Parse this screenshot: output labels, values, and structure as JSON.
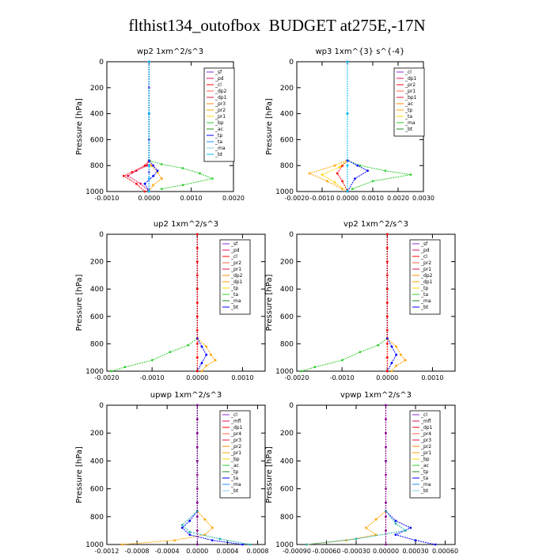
{
  "figure_title": "flthist134_outofbox  BUDGET at275E,-17N",
  "chart_data": [
    {
      "type": "line",
      "title": "wp2   1xm^2/s^3",
      "ylabel": "Pressure [hPa]",
      "ylim": [
        1000,
        0
      ],
      "y_ticks": [
        0,
        200,
        400,
        600,
        800,
        1000
      ],
      "xlim": [
        -0.001,
        0.002
      ],
      "x_ticks": [
        -0.001,
        0.0,
        0.001,
        0.002
      ],
      "x_tick_labels": [
        "-0.0010",
        "0.0000",
        "0.0010",
        "0.0020"
      ],
      "legend": [
        "_sf",
        "_pd",
        "_cl",
        "_dp2",
        "_dp1",
        "_pr3",
        "_pr2",
        "_pr1",
        "_bp",
        "_ac",
        "_tp",
        "_ta",
        "_ma",
        "_bt"
      ],
      "legend_position": "top-right",
      "series": [
        {
          "name": "_sf",
          "color": "#8a2be2",
          "x": [
            0,
            0,
            0,
            0,
            0,
            0,
            0,
            0
          ],
          "y": [
            0,
            200,
            400,
            600,
            800,
            850,
            900,
            1000
          ]
        },
        {
          "name": "_pd",
          "color": "#e0115f",
          "x": [
            0,
            0,
            0,
            -5e-05,
            -0.0003,
            -0.0005,
            -0.0002,
            0
          ],
          "y": [
            0,
            400,
            760,
            800,
            840,
            880,
            940,
            1000
          ]
        },
        {
          "name": "_cl",
          "color": "#ff0000",
          "x": [
            0,
            0,
            0,
            -0.0001,
            -0.0004,
            -0.0006,
            -0.0003,
            -0.0001
          ],
          "y": [
            0,
            400,
            760,
            800,
            850,
            880,
            940,
            1000
          ]
        },
        {
          "name": "_pr1",
          "color": "#ffa500",
          "x": [
            0,
            0,
            0,
            5e-05,
            0.0002,
            0.0003,
            0.0001,
            0
          ],
          "y": [
            0,
            400,
            760,
            800,
            850,
            900,
            950,
            1000
          ]
        },
        {
          "name": "_bp",
          "color": "#32cd32",
          "x": [
            0,
            0,
            0,
            0.0003,
            0.0008,
            0.0012,
            0.0015,
            0.0008,
            0.0003
          ],
          "y": [
            0,
            400,
            760,
            790,
            820,
            860,
            900,
            950,
            980
          ]
        },
        {
          "name": "_tp",
          "color": "#0000ff",
          "x": [
            0,
            0,
            0,
            0.0001,
            0.0002,
            0.0001,
            -0.0001,
            0
          ],
          "y": [
            0,
            400,
            760,
            800,
            840,
            880,
            940,
            1000
          ]
        },
        {
          "name": "_bt",
          "color": "#00bfff",
          "x": [
            0,
            0,
            0,
            0,
            0
          ],
          "y": [
            0,
            400,
            800,
            900,
            1000
          ]
        }
      ]
    },
    {
      "type": "line",
      "title": "wp3   1xm^{3} s^{-4}",
      "ylabel": "Pressure [hPa]",
      "ylim": [
        1000,
        0
      ],
      "y_ticks": [
        0,
        200,
        400,
        600,
        800,
        1000
      ],
      "xlim": [
        -0.002,
        0.003
      ],
      "x_ticks": [
        -0.002,
        -0.001,
        0.0,
        0.001,
        0.002,
        0.003
      ],
      "x_tick_labels": [
        "-0.0020",
        "-0.0010",
        "0.0000",
        "0.0010",
        "0.0020",
        "0.0030"
      ],
      "legend": [
        "_cl",
        "_dp1",
        "_pr2",
        "_pr1",
        "_bp1",
        "_ac",
        "_tp",
        "_ta",
        "_ma",
        "_bt"
      ],
      "legend_position": "top-right",
      "series": [
        {
          "name": "_cl",
          "color": "#ff0000",
          "x": [
            0,
            0,
            0,
            -0.0002,
            -0.0004,
            -0.0002,
            0
          ],
          "y": [
            0,
            400,
            760,
            800,
            860,
            920,
            1000
          ]
        },
        {
          "name": "_pr2",
          "color": "#ffa500",
          "x": [
            0,
            0,
            0,
            -0.0005,
            -0.0015,
            -0.0008,
            -0.0002
          ],
          "y": [
            0,
            400,
            760,
            800,
            860,
            920,
            980
          ]
        },
        {
          "name": "_pr1",
          "color": "#ffd700",
          "x": [
            0,
            0,
            0,
            -0.0003,
            -0.001,
            -0.0005,
            0
          ],
          "y": [
            0,
            400,
            760,
            810,
            870,
            930,
            1000
          ]
        },
        {
          "name": "_ac",
          "color": "#32cd32",
          "x": [
            0,
            0,
            0,
            0.0005,
            0.0015,
            0.0025,
            0.001,
            0.0002
          ],
          "y": [
            0,
            400,
            760,
            800,
            840,
            870,
            920,
            980
          ]
        },
        {
          "name": "_tp",
          "color": "#0000ff",
          "x": [
            0,
            0,
            0,
            0.0004,
            0.0008,
            0.0003,
            0
          ],
          "y": [
            0,
            400,
            760,
            800,
            840,
            900,
            1000
          ]
        },
        {
          "name": "_bt",
          "color": "#00bfff",
          "x": [
            0,
            0,
            0,
            0
          ],
          "y": [
            0,
            400,
            800,
            1000
          ]
        }
      ]
    },
    {
      "type": "line",
      "title": "up2   1xm^2/s^3",
      "ylabel": "Pressure [hPa]",
      "ylim": [
        1000,
        0
      ],
      "y_ticks": [
        0,
        200,
        400,
        600,
        800,
        1000
      ],
      "xlim": [
        -0.002,
        0.0015
      ],
      "x_ticks": [
        -0.002,
        -0.001,
        0.0,
        0.001
      ],
      "x_tick_labels": [
        "-0.0020",
        "-0.0010",
        "0.0000",
        "0.0010"
      ],
      "legend": [
        "_sf",
        "_pd",
        "_cl",
        "_pr2",
        "_pr1",
        "_dp2",
        "_dp1",
        "_tp",
        "_ta",
        "_ma",
        "_bt"
      ],
      "legend_position": "top-right",
      "series": [
        {
          "name": "_pr2",
          "color": "#ffa500",
          "x": [
            0,
            0,
            0,
            0.0002,
            0.0003,
            0.0004,
            0.0002,
            0.0001
          ],
          "y": [
            0,
            400,
            760,
            820,
            880,
            920,
            960,
            1000
          ]
        },
        {
          "name": "_dp2",
          "color": "#32cd32",
          "x": [
            0,
            0,
            0,
            -0.0002,
            -0.0006,
            -0.001,
            -0.0016,
            -0.0019
          ],
          "y": [
            0,
            400,
            760,
            810,
            860,
            920,
            970,
            1000
          ]
        },
        {
          "name": "_tp",
          "color": "#0000ff",
          "x": [
            0,
            0,
            0,
            0.0001,
            0.0002,
            0.0001,
            0
          ],
          "y": [
            0,
            400,
            760,
            820,
            880,
            940,
            1000
          ]
        },
        {
          "name": "_cl",
          "color": "#ff0000",
          "x": [
            0,
            0,
            0,
            0,
            0,
            0,
            0,
            0,
            0,
            0,
            0
          ],
          "y": [
            0,
            100,
            200,
            300,
            400,
            500,
            600,
            700,
            800,
            900,
            1000
          ]
        }
      ]
    },
    {
      "type": "line",
      "title": "vp2   1xm^2/s^3",
      "ylabel": "Pressure [hPa]",
      "ylim": [
        1000,
        0
      ],
      "y_ticks": [
        0,
        200,
        400,
        600,
        800,
        1000
      ],
      "xlim": [
        -0.002,
        0.0015
      ],
      "x_ticks": [
        -0.002,
        -0.001,
        0.0,
        0.001
      ],
      "x_tick_labels": [
        "-0.0020",
        "-0.0010",
        "0.0000",
        "0.0010"
      ],
      "legend": [
        "_sf",
        "_pd",
        "_cl",
        "_pr2",
        "_pr1",
        "_dp2",
        "_dp1",
        "_tp",
        "_ta",
        "_ma",
        "_bt"
      ],
      "legend_position": "top-right",
      "series": [
        {
          "name": "_pr2",
          "color": "#ffa500",
          "x": [
            0,
            0,
            0,
            0.0002,
            0.0003,
            0.0004,
            0.0002,
            0.0001
          ],
          "y": [
            0,
            400,
            760,
            820,
            880,
            920,
            960,
            1000
          ]
        },
        {
          "name": "_dp2",
          "color": "#32cd32",
          "x": [
            0,
            0,
            0,
            -0.0002,
            -0.0006,
            -0.001,
            -0.0016,
            -0.0019
          ],
          "y": [
            0,
            400,
            760,
            810,
            860,
            920,
            970,
            1000
          ]
        },
        {
          "name": "_tp",
          "color": "#0000ff",
          "x": [
            0,
            0,
            0,
            0.0001,
            0.0002,
            0.0001,
            0
          ],
          "y": [
            0,
            400,
            760,
            820,
            880,
            940,
            1000
          ]
        },
        {
          "name": "_cl",
          "color": "#ff0000",
          "x": [
            0,
            0,
            0,
            0,
            0,
            0,
            0,
            0,
            0,
            0,
            0
          ],
          "y": [
            0,
            100,
            200,
            300,
            400,
            500,
            600,
            700,
            800,
            900,
            1000
          ]
        }
      ]
    },
    {
      "type": "line",
      "title": "upwp   1xm^2/s^3",
      "ylabel": "Pressure [hPa]",
      "ylim": [
        1000,
        0
      ],
      "y_ticks": [
        0,
        200,
        400,
        600,
        800,
        1000
      ],
      "xlim": [
        -0.0012,
        0.0009
      ],
      "x_ticks": [
        -0.0012,
        -0.0008,
        -0.0004,
        0.0,
        0.0004,
        0.0008
      ],
      "x_tick_labels": [
        "-0.0012",
        "-0.0008",
        "-0.0004",
        "0.0000",
        "0.0004",
        "0.0008"
      ],
      "legend": [
        "_cl",
        "_mfl",
        "_dp1",
        "_pr4",
        "_pr3",
        "_pr2",
        "_pr1",
        "_bp",
        "_ac",
        "_tp",
        "_ta",
        "_ma",
        "_bt"
      ],
      "legend_position": "top-right",
      "series": [
        {
          "name": "_pr2",
          "color": "#ffa500",
          "x": [
            0,
            0,
            0,
            0.0001,
            0.0002,
            0.0001,
            -0.0003,
            -0.001
          ],
          "y": [
            0,
            400,
            760,
            820,
            880,
            930,
            970,
            1000
          ]
        },
        {
          "name": "_tp",
          "color": "#0000ff",
          "x": [
            0,
            0,
            0,
            -0.0001,
            -0.0002,
            -0.0001,
            0.0002,
            0.0006
          ],
          "y": [
            0,
            400,
            760,
            830,
            880,
            930,
            970,
            1000
          ]
        },
        {
          "name": "_ta",
          "color": "#20b2aa",
          "x": [
            0,
            0,
            0,
            -0.0002,
            -0.0001,
            0.0003,
            0.0007
          ],
          "y": [
            0,
            400,
            760,
            860,
            910,
            960,
            1000
          ]
        },
        {
          "name": "_mfl",
          "color": "#8b008b",
          "x": [
            0,
            0,
            0,
            0,
            0,
            0,
            0,
            0,
            0,
            0,
            0
          ],
          "y": [
            0,
            100,
            200,
            300,
            400,
            500,
            600,
            700,
            800,
            900,
            1000
          ]
        }
      ]
    },
    {
      "type": "line",
      "title": "vpwp   1xm^2/s^3",
      "ylabel": "Pressure [hPa]",
      "ylim": [
        1000,
        0
      ],
      "y_ticks": [
        0,
        200,
        400,
        600,
        800,
        1000
      ],
      "xlim": [
        -0.0009,
        0.0007
      ],
      "x_ticks": [
        -0.0009,
        -0.0006,
        -0.0003,
        0.0,
        0.0003,
        0.0006
      ],
      "x_tick_labels": [
        "-0.00090",
        "-0.00060",
        "-0.00030",
        "0.00000",
        "0.00030",
        "0.00060"
      ],
      "legend": [
        "_cl",
        "_mfl",
        "_dp1",
        "_pr4",
        "_pr3",
        "_pr2",
        "_pr1",
        "_bp",
        "_ac",
        "_tp",
        "_ta",
        "_ma",
        "_bt"
      ],
      "legend_position": "top-right",
      "series": [
        {
          "name": "_pr2",
          "color": "#ffa500",
          "x": [
            0,
            0,
            0,
            -0.0001,
            -0.0002,
            -0.0001,
            -0.0004,
            -0.0008
          ],
          "y": [
            0,
            400,
            760,
            820,
            880,
            930,
            970,
            1000
          ]
        },
        {
          "name": "_tp",
          "color": "#0000ff",
          "x": [
            0,
            0,
            0,
            0.0001,
            0.00025,
            0.0001,
            0.0003,
            0.0005
          ],
          "y": [
            0,
            400,
            760,
            830,
            880,
            930,
            970,
            1000
          ]
        },
        {
          "name": "_ta",
          "color": "#20b2aa",
          "x": [
            0,
            0,
            0,
            0.0001,
            0.0002,
            -0.0003,
            -0.0008
          ],
          "y": [
            0,
            400,
            760,
            850,
            900,
            960,
            1000
          ]
        },
        {
          "name": "_mfl",
          "color": "#8b008b",
          "x": [
            0,
            0,
            0,
            0,
            0,
            0,
            0,
            0,
            0,
            0,
            0
          ],
          "y": [
            0,
            100,
            200,
            300,
            400,
            500,
            600,
            700,
            800,
            900,
            1000
          ]
        }
      ]
    }
  ]
}
